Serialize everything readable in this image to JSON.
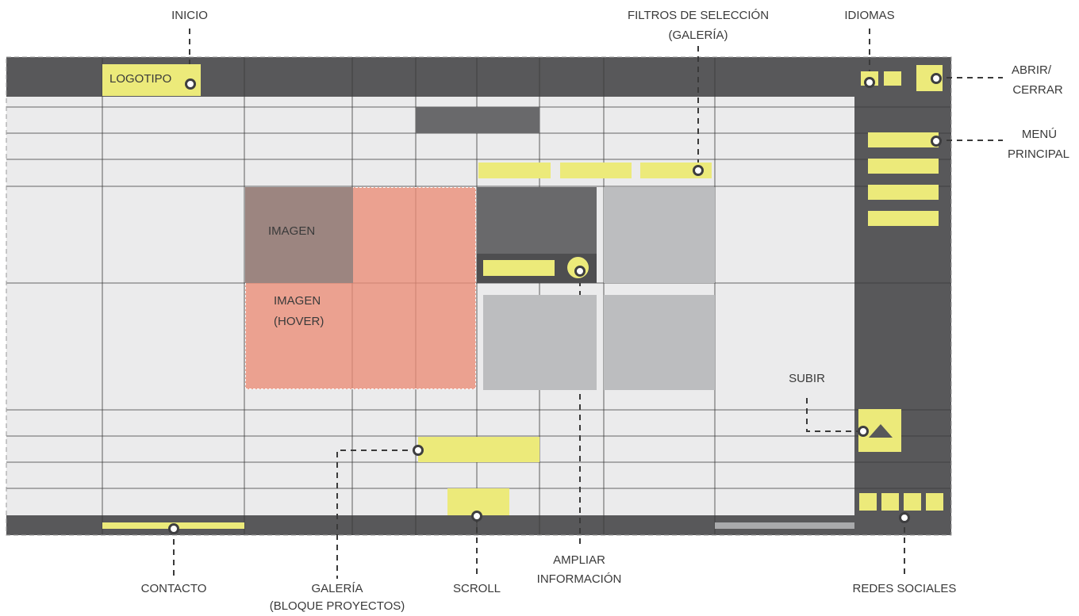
{
  "labels": {
    "inicio": "INICIO",
    "filtros_line1": "FILTROS DE SELECCIÓN",
    "filtros_line2": "(GALERÍA)",
    "idiomas": "IDIOMAS",
    "abrir_line1": "ABRIR/",
    "abrir_line2": "CERRAR",
    "menu_line1": "MENÚ",
    "menu_line2": "PRINCIPAL",
    "subir": "SUBIR",
    "contacto": "CONTACTO",
    "galeria_line1": "GALERÍA",
    "galeria_line2": "(BLOQUE PROYECTOS)",
    "scroll": "SCROLL",
    "ampliar_line1": "AMPLIAR",
    "ampliar_line2": "INFORMACIÓN",
    "redes": "REDES SOCIALES"
  },
  "wireframe": {
    "logo": "LOGOTIPO",
    "imagen": "IMAGEN",
    "imagen_hover_line1": "IMAGEN",
    "imagen_hover_line2": "(HOVER)"
  },
  "colors": {
    "bar_dark": "#58585a",
    "yellow": "#ecea7a",
    "grid_bg": "#ebebec",
    "salmon": "#ea8c76",
    "card_gray": "#bcbdbf",
    "card_dark": "#69696b"
  }
}
